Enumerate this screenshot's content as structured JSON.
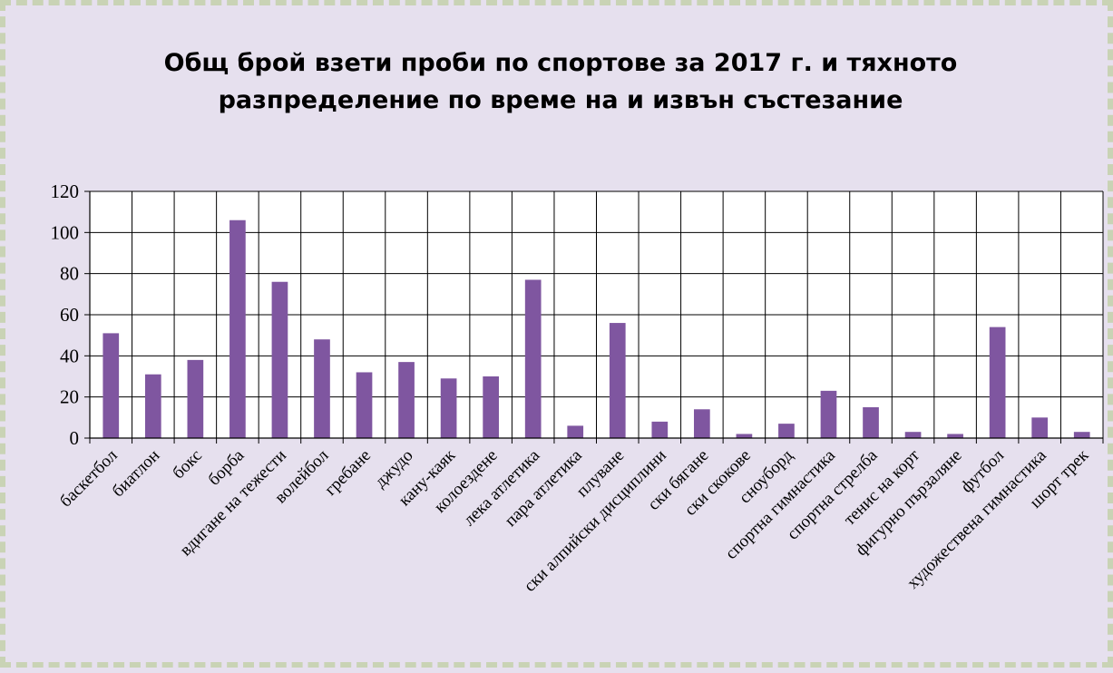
{
  "chart_data": {
    "type": "bar",
    "title_lines": [
      "Общ брой взети проби по спортове за 2017 г. и тяхното",
      "разпределение по време на и извън състезание"
    ],
    "categories": [
      "баскетбол",
      "биатлон",
      "бокс",
      "борба",
      "вдигане на тежести",
      "волейбол",
      "гребане",
      "джудо",
      "кану-каяк",
      "колоездене",
      "лека атлетика",
      "пара атлетика",
      "плуване",
      "ски алпийски дисциплини",
      "ски бягане",
      "ски скокове",
      "сноуборд",
      "спортна гимнастика",
      "спортна стрелба",
      "тенис на корт",
      "фигурно пързаляне",
      "футбол",
      "художествена гимнастика",
      "шорт трек"
    ],
    "values": [
      51,
      31,
      38,
      106,
      76,
      48,
      32,
      37,
      29,
      30,
      77,
      6,
      56,
      8,
      14,
      2,
      7,
      23,
      15,
      3,
      2,
      54,
      10,
      3
    ],
    "ylim": [
      0,
      120
    ],
    "yticks": [
      "0",
      "20",
      "40",
      "60",
      "80",
      "100",
      "120"
    ],
    "grid": true,
    "bar_color": "#7f56a0",
    "xlabel": "",
    "ylabel": ""
  }
}
